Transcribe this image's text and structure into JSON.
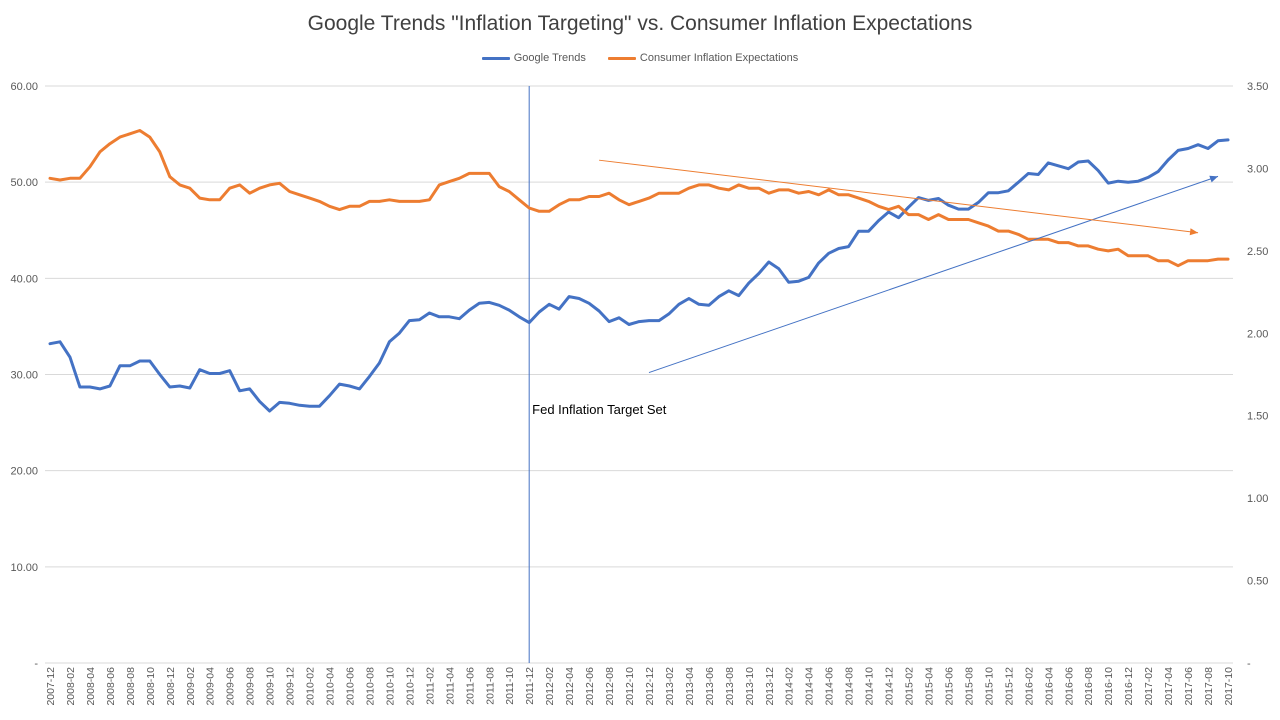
{
  "chart_data": {
    "type": "line",
    "title": "Google Trends \"Inflation Targeting\" vs. Consumer Inflation Expectations",
    "legend_position": "top",
    "grid": true,
    "x_start": "2007-12",
    "x_end": "2017-10",
    "y_left": {
      "min": 0,
      "max": 60,
      "ticks": [
        "-",
        "10.00",
        "20.00",
        "30.00",
        "40.00",
        "50.00",
        "60.00"
      ]
    },
    "y_right": {
      "min": 0,
      "max": 3.5,
      "ticks": [
        "-",
        "0.50",
        "1.00",
        "1.50",
        "2.00",
        "2.50",
        "3.00",
        "3.50"
      ]
    },
    "x_tick_labels": [
      "2007-12",
      "2008-02",
      "2008-04",
      "2008-06",
      "2008-08",
      "2008-10",
      "2008-12",
      "2009-02",
      "2009-04",
      "2009-06",
      "2009-08",
      "2009-10",
      "2009-12",
      "2010-02",
      "2010-04",
      "2010-06",
      "2010-08",
      "2010-10",
      "2010-12",
      "2011-02",
      "2011-04",
      "2011-06",
      "2011-08",
      "2011-10",
      "2011-12",
      "2012-02",
      "2012-04",
      "2012-06",
      "2012-08",
      "2012-10",
      "2012-12",
      "2013-02",
      "2013-04",
      "2013-06",
      "2013-08",
      "2013-10",
      "2013-12",
      "2014-02",
      "2014-04",
      "2014-06",
      "2014-08",
      "2014-10",
      "2014-12",
      "2015-02",
      "2015-04",
      "2015-06",
      "2015-08",
      "2015-10",
      "2015-12",
      "2016-02",
      "2016-04",
      "2016-06",
      "2016-08",
      "2016-10",
      "2016-12",
      "2017-02",
      "2017-04",
      "2017-06",
      "2017-08",
      "2017-10"
    ],
    "series": [
      {
        "name": "Google Trends",
        "color": "#4472C4",
        "axis": "left",
        "values": [
          33.2,
          33.4,
          31.8,
          28.7,
          28.7,
          28.5,
          28.8,
          30.9,
          30.9,
          31.4,
          31.4,
          30.0,
          28.7,
          28.8,
          28.6,
          30.5,
          30.1,
          30.1,
          30.4,
          28.3,
          28.5,
          27.2,
          26.2,
          27.1,
          27.0,
          26.8,
          26.7,
          26.7,
          27.8,
          29.0,
          28.8,
          28.5,
          29.8,
          31.2,
          33.4,
          34.3,
          35.6,
          35.7,
          36.4,
          36.0,
          36.0,
          35.8,
          36.7,
          37.4,
          37.5,
          37.2,
          36.7,
          36.0,
          35.4,
          36.5,
          37.3,
          36.8,
          38.1,
          37.9,
          37.4,
          36.6,
          35.5,
          35.9,
          35.2,
          35.5,
          35.6,
          35.6,
          36.3,
          37.3,
          37.9,
          37.3,
          37.2,
          38.1,
          38.7,
          38.2,
          39.5,
          40.5,
          41.7,
          41.0,
          39.6,
          39.7,
          40.1,
          41.6,
          42.6,
          43.1,
          43.3,
          44.9,
          44.9,
          46.0,
          46.9,
          46.3,
          47.4,
          48.4,
          48.1,
          48.3,
          47.6,
          47.2,
          47.2,
          47.9,
          48.9,
          48.9,
          49.1,
          50.0,
          50.9,
          50.8,
          52.0,
          51.7,
          51.4,
          52.1,
          52.2,
          51.2,
          49.9,
          50.1,
          50.0,
          50.1,
          50.5,
          51.1,
          52.3,
          53.3,
          53.5,
          53.9,
          53.5,
          54.3,
          54.4
        ]
      },
      {
        "name": "Consumer Inflation Expectations",
        "color": "#ED7D31",
        "axis": "right",
        "values": [
          2.94,
          2.93,
          2.94,
          2.94,
          3.01,
          3.1,
          3.15,
          3.19,
          3.21,
          3.23,
          3.19,
          3.1,
          2.95,
          2.9,
          2.88,
          2.82,
          2.81,
          2.81,
          2.88,
          2.9,
          2.85,
          2.88,
          2.9,
          2.91,
          2.86,
          2.84,
          2.82,
          2.8,
          2.77,
          2.75,
          2.77,
          2.77,
          2.8,
          2.8,
          2.81,
          2.8,
          2.8,
          2.8,
          2.81,
          2.9,
          2.92,
          2.94,
          2.97,
          2.97,
          2.97,
          2.89,
          2.86,
          2.81,
          2.76,
          2.74,
          2.74,
          2.78,
          2.81,
          2.81,
          2.83,
          2.83,
          2.85,
          2.81,
          2.78,
          2.8,
          2.82,
          2.85,
          2.85,
          2.85,
          2.88,
          2.9,
          2.9,
          2.88,
          2.87,
          2.9,
          2.88,
          2.88,
          2.85,
          2.87,
          2.87,
          2.85,
          2.86,
          2.84,
          2.87,
          2.84,
          2.84,
          2.82,
          2.8,
          2.77,
          2.75,
          2.77,
          2.72,
          2.72,
          2.69,
          2.72,
          2.69,
          2.69,
          2.69,
          2.67,
          2.65,
          2.62,
          2.62,
          2.6,
          2.57,
          2.57,
          2.57,
          2.55,
          2.55,
          2.53,
          2.53,
          2.51,
          2.5,
          2.51,
          2.47,
          2.47,
          2.47,
          2.44,
          2.44,
          2.41,
          2.44,
          2.44,
          2.44,
          2.45,
          2.45
        ]
      }
    ],
    "annotations": [
      {
        "type": "vertical-line",
        "at": "2011-12",
        "label": "Fed Inflation Target Set"
      },
      {
        "type": "trend-arrow",
        "series": "Google Trends",
        "from": {
          "x": "2012-12",
          "y": 30.2
        },
        "to": {
          "x": "2017-09",
          "y": 50.6
        }
      },
      {
        "type": "trend-arrow",
        "series": "Consumer Inflation Expectations",
        "from": {
          "x": "2012-07",
          "y": 3.05
        },
        "to": {
          "x": "2017-07",
          "y": 2.61
        }
      }
    ]
  }
}
